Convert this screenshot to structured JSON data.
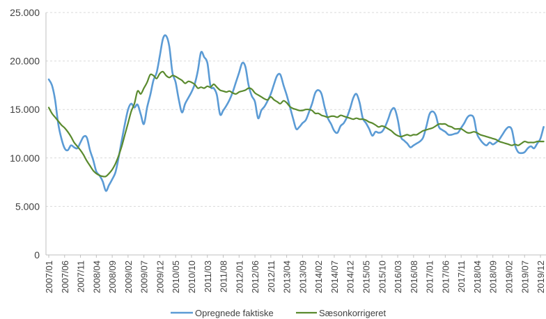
{
  "chart_data": {
    "type": "line",
    "ylim": [
      0,
      25000
    ],
    "yticks": [
      0,
      5000,
      10000,
      15000,
      20000,
      25000
    ],
    "ytick_labels": [
      "0",
      "5.000",
      "10.000",
      "15.000",
      "20.000",
      "25.000"
    ],
    "grid": true,
    "legend": "bottom",
    "xticks": [
      "2007/01",
      "2007/06",
      "2007/11",
      "2008/04",
      "2008/09",
      "2009/02",
      "2009/07",
      "2009/12",
      "2010/05",
      "2010/10",
      "2011/03",
      "2011/08",
      "2012/01",
      "2012/06",
      "2012/11",
      "2013/04",
      "2013/09",
      "2014/02",
      "2014/07",
      "2014/12",
      "2015/05",
      "2015/10",
      "2016/03",
      "2016/08",
      "2017/01",
      "2017/06",
      "2017/11",
      "2018/04",
      "2018/09",
      "2019/02",
      "2019/07",
      "2019/12"
    ],
    "x": [
      "2007/01",
      "2007/02",
      "2007/03",
      "2007/04",
      "2007/05",
      "2007/06",
      "2007/07",
      "2007/08",
      "2007/09",
      "2007/10",
      "2007/11",
      "2007/12",
      "2008/01",
      "2008/02",
      "2008/03",
      "2008/04",
      "2008/05",
      "2008/06",
      "2008/07",
      "2008/08",
      "2008/09",
      "2008/10",
      "2008/11",
      "2008/12",
      "2009/01",
      "2009/02",
      "2009/03",
      "2009/04",
      "2009/05",
      "2009/06",
      "2009/07",
      "2009/08",
      "2009/09",
      "2009/10",
      "2009/11",
      "2009/12",
      "2010/01",
      "2010/02",
      "2010/03",
      "2010/04",
      "2010/05",
      "2010/06",
      "2010/07",
      "2010/08",
      "2010/09",
      "2010/10",
      "2010/11",
      "2010/12",
      "2011/01",
      "2011/02",
      "2011/03",
      "2011/04",
      "2011/05",
      "2011/06",
      "2011/07",
      "2011/08",
      "2011/09",
      "2011/10",
      "2011/11",
      "2011/12",
      "2012/01",
      "2012/02",
      "2012/03",
      "2012/04",
      "2012/05",
      "2012/06",
      "2012/07",
      "2012/08",
      "2012/09",
      "2012/10",
      "2012/11",
      "2012/12",
      "2013/01",
      "2013/02",
      "2013/03",
      "2013/04",
      "2013/05",
      "2013/06",
      "2013/07",
      "2013/08",
      "2013/09",
      "2013/10",
      "2013/11",
      "2013/12",
      "2014/01",
      "2014/02",
      "2014/03",
      "2014/04",
      "2014/05",
      "2014/06",
      "2014/07",
      "2014/08",
      "2014/09",
      "2014/10",
      "2014/11",
      "2014/12",
      "2015/01",
      "2015/02",
      "2015/03",
      "2015/04",
      "2015/05",
      "2015/06",
      "2015/07",
      "2015/08",
      "2015/09",
      "2015/10",
      "2015/11",
      "2015/12",
      "2016/01",
      "2016/02",
      "2016/03",
      "2016/04",
      "2016/05",
      "2016/06",
      "2016/07",
      "2016/08",
      "2016/09",
      "2016/10",
      "2016/11",
      "2016/12",
      "2017/01",
      "2017/02",
      "2017/03",
      "2017/04",
      "2017/05",
      "2017/06",
      "2017/07",
      "2017/08",
      "2017/09",
      "2017/10",
      "2017/11",
      "2017/12",
      "2018/01",
      "2018/02",
      "2018/03",
      "2018/04",
      "2018/05",
      "2018/06",
      "2018/07",
      "2018/08",
      "2018/09",
      "2018/10",
      "2018/11",
      "2018/12",
      "2019/01",
      "2019/02",
      "2019/03",
      "2019/04",
      "2019/05",
      "2019/06",
      "2019/07",
      "2019/08",
      "2019/09",
      "2019/10",
      "2019/11",
      "2019/12",
      "2020/01"
    ],
    "series": [
      {
        "name": "Opregnede faktiske",
        "color": "#5B9BD5",
        "values": [
          18100,
          17500,
          16000,
          13500,
          12000,
          11000,
          10800,
          11300,
          11100,
          11000,
          11600,
          12200,
          12100,
          10800,
          9800,
          8600,
          8200,
          7600,
          6600,
          7200,
          7800,
          8500,
          10000,
          11800,
          13500,
          15000,
          15600,
          15200,
          15500,
          14500,
          13500,
          15200,
          16500,
          18000,
          18800,
          20500,
          22300,
          22600,
          21500,
          18800,
          17800,
          16000,
          14700,
          15600,
          16200,
          16800,
          17600,
          19000,
          20900,
          20400,
          19800,
          17400,
          17200,
          16500,
          14500,
          14900,
          15400,
          16000,
          16800,
          17800,
          18800,
          19800,
          19400,
          17500,
          16400,
          15800,
          14100,
          14900,
          15300,
          15900,
          16600,
          17600,
          18500,
          18600,
          17500,
          16500,
          15300,
          14100,
          13000,
          13200,
          13600,
          13900,
          14700,
          15600,
          16700,
          17000,
          16600,
          15200,
          14100,
          13500,
          12800,
          12600,
          13300,
          13600,
          14200,
          15100,
          16200,
          16600,
          15700,
          14100,
          13600,
          13000,
          12300,
          12700,
          12600,
          12700,
          13200,
          14000,
          14900,
          15100,
          14000,
          12200,
          11800,
          11500,
          11100,
          11300,
          11500,
          11700,
          12100,
          13200,
          14500,
          14800,
          14400,
          13200,
          12900,
          12700,
          12400,
          12400,
          12500,
          12600,
          13100,
          13600,
          14200,
          14400,
          14100,
          12500,
          11900,
          11500,
          11300,
          11600,
          11400,
          11600,
          11900,
          12400,
          12900,
          13200,
          12900,
          11300,
          10600,
          10500,
          10600,
          11000,
          11200,
          11000,
          11500,
          12000,
          13200
        ]
      },
      {
        "name": "Sæsonkorrigeret",
        "color": "#5A8A2E",
        "values": [
          15200,
          14600,
          14200,
          13800,
          13400,
          13100,
          12700,
          12200,
          11600,
          11200,
          10800,
          10300,
          9700,
          9200,
          8700,
          8400,
          8200,
          8100,
          8100,
          8400,
          8800,
          9400,
          10200,
          11200,
          12400,
          13600,
          14800,
          15600,
          16900,
          16600,
          17200,
          17800,
          18600,
          18500,
          18200,
          18700,
          18900,
          18500,
          18300,
          18500,
          18400,
          18200,
          18000,
          17700,
          17900,
          17800,
          17600,
          17200,
          17300,
          17200,
          17400,
          17300,
          17600,
          17300,
          17000,
          16900,
          16800,
          16900,
          16700,
          16600,
          16800,
          16900,
          17000,
          17200,
          17100,
          16700,
          16500,
          16300,
          16100,
          16000,
          16300,
          16000,
          15800,
          15600,
          15900,
          15700,
          15300,
          15100,
          15000,
          14900,
          14900,
          15000,
          15000,
          14900,
          14600,
          14600,
          14400,
          14300,
          14200,
          14300,
          14300,
          14200,
          14400,
          14300,
          14200,
          14100,
          14000,
          14100,
          14000,
          14000,
          13900,
          13700,
          13600,
          13400,
          13200,
          13300,
          13200,
          13000,
          12800,
          12500,
          12300,
          12200,
          12300,
          12400,
          12300,
          12400,
          12400,
          12600,
          12800,
          12900,
          13000,
          13100,
          13300,
          13500,
          13500,
          13500,
          13300,
          13200,
          13000,
          13000,
          13000,
          12800,
          12600,
          12600,
          12700,
          12600,
          12400,
          12300,
          12200,
          12100,
          12000,
          11900,
          11700,
          11600,
          11500,
          11400,
          11300,
          11400,
          11300,
          11500,
          11700,
          11600,
          11600,
          11600,
          11700,
          11700,
          11700
        ]
      }
    ]
  }
}
